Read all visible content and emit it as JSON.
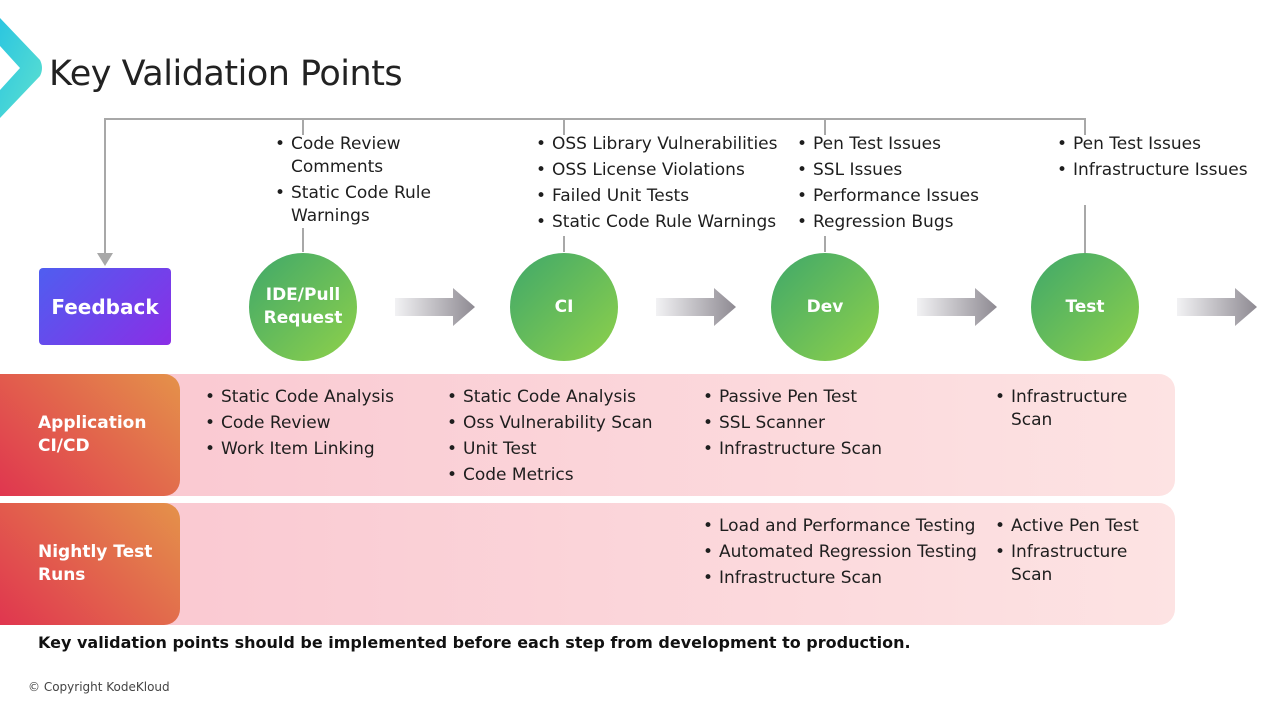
{
  "title": "Key Validation Points",
  "feedback": "Feedback",
  "stages": [
    {
      "label": "IDE/Pull Request",
      "issues": [
        "Code Review Comments",
        "Static Code Rule Warnings"
      ]
    },
    {
      "label": "CI",
      "issues": [
        "OSS Library Vulnerabilities",
        "OSS License Violations",
        "Failed Unit Tests",
        "Static Code Rule Warnings"
      ]
    },
    {
      "label": "Dev",
      "issues": [
        "Pen Test Issues",
        "SSL Issues",
        "Performance Issues",
        "Regression Bugs"
      ]
    },
    {
      "label": "Test",
      "issues": [
        "Pen Test Issues",
        "Infrastructure Issues"
      ]
    }
  ],
  "rows": [
    {
      "label": "Application CI/CD",
      "cols": [
        [
          "Static Code Analysis",
          "Code Review",
          "Work Item Linking"
        ],
        [
          "Static Code Analysis",
          "Oss Vulnerability Scan",
          "Unit Test",
          "Code Metrics"
        ],
        [
          "Passive Pen Test",
          "SSL Scanner",
          "Infrastructure Scan"
        ],
        [
          "Infrastructure Scan"
        ]
      ]
    },
    {
      "label": "Nightly Test Runs",
      "cols": [
        [],
        [],
        [
          "Load and Performance Testing",
          "Automated Regression Testing",
          "Infrastructure Scan"
        ],
        [
          "Active Pen Test",
          "Infrastructure Scan"
        ]
      ]
    }
  ],
  "note": "Key validation points should be implemented before each step from development to production.",
  "copyright": "© Copyright KodeKloud",
  "colors": {
    "stage": "#5cbb5a",
    "feedback": "#6a45ea",
    "row_label": "#e25a4a",
    "band": "#fbd0d8",
    "logo": "#33cfe0"
  }
}
